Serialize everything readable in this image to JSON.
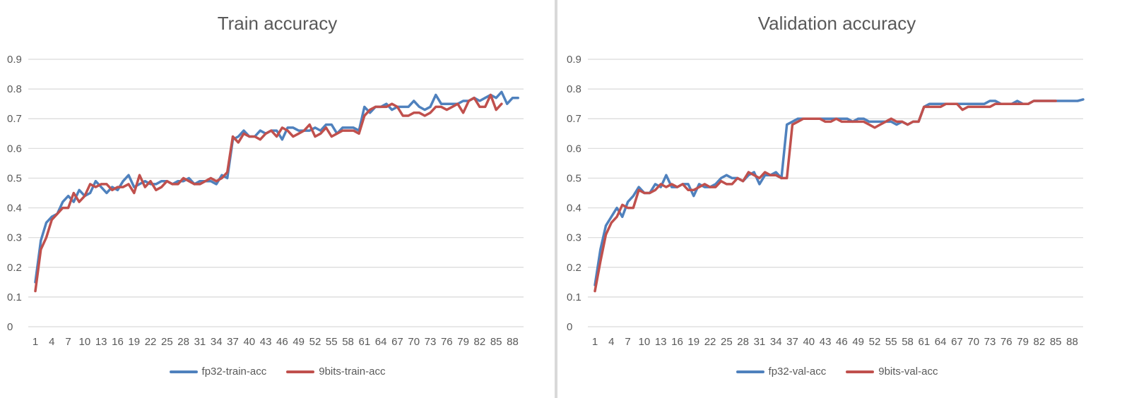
{
  "colors": {
    "fp32": "#4f81bd",
    "bits9": "#c0504d",
    "grid": "#d9d9d9",
    "text": "#595959"
  },
  "chart_data": [
    {
      "type": "line",
      "title": "Train accuracy",
      "xlabel": "",
      "ylabel": "",
      "ylim": [
        0,
        0.9
      ],
      "yticks": [
        "0",
        "0.1",
        "0.2",
        "0.3",
        "0.4",
        "0.5",
        "0.6",
        "0.7",
        "0.8",
        "0.9"
      ],
      "xtick_labels": [
        "1",
        "4",
        "7",
        "10",
        "13",
        "16",
        "19",
        "22",
        "25",
        "28",
        "31",
        "34",
        "37",
        "40",
        "43",
        "46",
        "49",
        "52",
        "55",
        "58",
        "61",
        "64",
        "67",
        "70",
        "73",
        "76",
        "79",
        "82",
        "85",
        "88"
      ],
      "legend": "bottom",
      "grid": true,
      "series": [
        {
          "name": "fp32-train-acc",
          "color": "#4f81bd",
          "values": [
            0.15,
            0.29,
            0.35,
            0.37,
            0.38,
            0.42,
            0.44,
            0.42,
            0.46,
            0.44,
            0.45,
            0.49,
            0.47,
            0.45,
            0.47,
            0.46,
            0.49,
            0.51,
            0.47,
            0.48,
            0.49,
            0.48,
            0.48,
            0.49,
            0.49,
            0.48,
            0.49,
            0.49,
            0.5,
            0.48,
            0.49,
            0.49,
            0.49,
            0.48,
            0.51,
            0.5,
            0.63,
            0.64,
            0.66,
            0.64,
            0.64,
            0.66,
            0.65,
            0.66,
            0.66,
            0.63,
            0.67,
            0.67,
            0.66,
            0.66,
            0.66,
            0.67,
            0.66,
            0.68,
            0.68,
            0.65,
            0.67,
            0.67,
            0.67,
            0.66,
            0.74,
            0.72,
            0.74,
            0.74,
            0.75,
            0.73,
            0.74,
            0.74,
            0.74,
            0.76,
            0.74,
            0.73,
            0.74,
            0.78,
            0.75,
            0.75,
            0.75,
            0.75,
            0.76,
            0.76,
            0.77,
            0.76,
            0.77,
            0.78,
            0.77,
            0.79,
            0.75,
            0.77,
            0.77
          ]
        },
        {
          "name": "9bits-train-acc",
          "color": "#c0504d",
          "values": [
            0.12,
            0.26,
            0.3,
            0.36,
            0.38,
            0.4,
            0.4,
            0.45,
            0.42,
            0.44,
            0.48,
            0.47,
            0.48,
            0.48,
            0.46,
            0.47,
            0.47,
            0.48,
            0.45,
            0.51,
            0.47,
            0.49,
            0.46,
            0.47,
            0.49,
            0.48,
            0.48,
            0.5,
            0.49,
            0.48,
            0.48,
            0.49,
            0.5,
            0.49,
            0.5,
            0.52,
            0.64,
            0.62,
            0.65,
            0.64,
            0.64,
            0.63,
            0.65,
            0.66,
            0.64,
            0.67,
            0.66,
            0.64,
            0.65,
            0.66,
            0.68,
            0.64,
            0.65,
            0.67,
            0.64,
            0.65,
            0.66,
            0.66,
            0.66,
            0.65,
            0.71,
            0.73,
            0.74,
            0.74,
            0.74,
            0.75,
            0.74,
            0.71,
            0.71,
            0.72,
            0.72,
            0.71,
            0.72,
            0.74,
            0.74,
            0.73,
            0.74,
            0.75,
            0.72,
            0.76,
            0.77,
            0.74,
            0.74,
            0.78,
            0.73,
            0.75
          ]
        }
      ]
    },
    {
      "type": "line",
      "title": "Validation accuracy",
      "xlabel": "",
      "ylabel": "",
      "ylim": [
        0,
        0.9
      ],
      "yticks": [
        "0",
        "0.1",
        "0.2",
        "0.3",
        "0.4",
        "0.5",
        "0.6",
        "0.7",
        "0.8",
        "0.9"
      ],
      "xtick_labels": [
        "1",
        "4",
        "7",
        "10",
        "13",
        "16",
        "19",
        "22",
        "25",
        "28",
        "31",
        "34",
        "37",
        "40",
        "43",
        "46",
        "49",
        "52",
        "55",
        "58",
        "61",
        "64",
        "67",
        "70",
        "73",
        "76",
        "79",
        "82",
        "85",
        "88"
      ],
      "legend": "bottom",
      "grid": true,
      "series": [
        {
          "name": "fp32-val-acc",
          "color": "#4f81bd",
          "values": [
            0.14,
            0.26,
            0.34,
            0.37,
            0.4,
            0.37,
            0.42,
            0.44,
            0.47,
            0.45,
            0.45,
            0.48,
            0.47,
            0.51,
            0.47,
            0.47,
            0.48,
            0.48,
            0.44,
            0.48,
            0.47,
            0.47,
            0.48,
            0.5,
            0.51,
            0.5,
            0.5,
            0.49,
            0.51,
            0.52,
            0.48,
            0.51,
            0.51,
            0.52,
            0.5,
            0.68,
            0.69,
            0.7,
            0.7,
            0.7,
            0.7,
            0.7,
            0.7,
            0.7,
            0.7,
            0.7,
            0.7,
            0.69,
            0.7,
            0.7,
            0.69,
            0.69,
            0.69,
            0.69,
            0.69,
            0.68,
            0.69,
            0.68,
            0.69,
            0.69,
            0.74,
            0.75,
            0.75,
            0.75,
            0.75,
            0.75,
            0.75,
            0.75,
            0.75,
            0.75,
            0.75,
            0.75,
            0.76,
            0.76,
            0.75,
            0.75,
            0.75,
            0.76,
            0.75,
            0.75,
            0.76,
            0.76,
            0.76,
            0.76,
            0.76,
            0.76,
            0.76,
            0.76,
            0.76,
            0.765
          ]
        },
        {
          "name": "9bits-val-acc",
          "color": "#c0504d",
          "values": [
            0.12,
            0.22,
            0.31,
            0.35,
            0.37,
            0.41,
            0.4,
            0.4,
            0.46,
            0.45,
            0.45,
            0.46,
            0.48,
            0.47,
            0.48,
            0.47,
            0.48,
            0.46,
            0.46,
            0.47,
            0.48,
            0.47,
            0.47,
            0.49,
            0.48,
            0.48,
            0.5,
            0.49,
            0.52,
            0.51,
            0.5,
            0.52,
            0.51,
            0.51,
            0.5,
            0.5,
            0.68,
            0.69,
            0.7,
            0.7,
            0.7,
            0.7,
            0.69,
            0.69,
            0.7,
            0.69,
            0.69,
            0.69,
            0.69,
            0.69,
            0.68,
            0.67,
            0.68,
            0.69,
            0.7,
            0.69,
            0.69,
            0.68,
            0.69,
            0.69,
            0.74,
            0.74,
            0.74,
            0.74,
            0.75,
            0.75,
            0.75,
            0.73,
            0.74,
            0.74,
            0.74,
            0.74,
            0.74,
            0.75,
            0.75,
            0.75,
            0.75,
            0.75,
            0.75,
            0.75,
            0.76,
            0.76,
            0.76,
            0.76,
            0.76
          ]
        }
      ]
    }
  ]
}
